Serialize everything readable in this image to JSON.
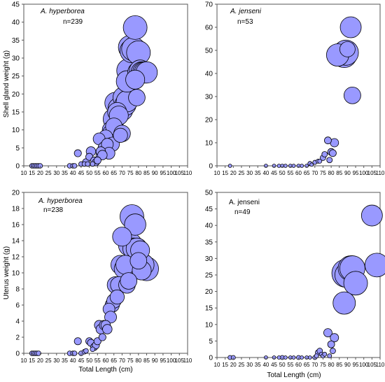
{
  "style": {
    "bubble_fill": "#9999ff",
    "bubble_stroke": "#000000"
  },
  "chart_data": [
    {
      "type": "scatter",
      "title": "A. hyperborea",
      "subtitle": "n=239",
      "title_italic": true,
      "xlabel": "",
      "ylabel": "Shell gland weight (g)",
      "xlim": [
        10,
        110
      ],
      "ylim": [
        0,
        45
      ],
      "x_ticks": [
        "10",
        "15",
        "20",
        "25",
        "30",
        "35",
        "40",
        "45",
        "50",
        "55",
        "60",
        "65",
        "70",
        "75",
        "80",
        "85",
        "90",
        "95",
        "100",
        "105",
        "110"
      ],
      "y_ticks": [
        "0",
        "5",
        "10",
        "15",
        "20",
        "25",
        "30",
        "35",
        "40",
        "45"
      ],
      "grid": false,
      "legend": "none",
      "series": [
        {
          "x": [
            15,
            16,
            17,
            18,
            19,
            20,
            38,
            40,
            41,
            43,
            45,
            47,
            48,
            49,
            50,
            51,
            52,
            53,
            54,
            55,
            56,
            57,
            57,
            58,
            59,
            60,
            60,
            61,
            62,
            63,
            63,
            64,
            65,
            65,
            66,
            67,
            68,
            68,
            69,
            70,
            70,
            71,
            72,
            73,
            73,
            74,
            75,
            76,
            77,
            78,
            78,
            79,
            80,
            80,
            81,
            82,
            83,
            84,
            85
          ],
          "y": [
            0,
            0,
            0,
            0,
            0,
            0,
            0,
            0,
            0,
            3.5,
            0.5,
            0.5,
            1,
            0.5,
            2.5,
            4,
            0.5,
            1.5,
            1,
            1.5,
            7.5,
            3,
            4,
            3,
            5,
            7,
            8,
            6,
            3.5,
            10,
            9,
            6,
            11,
            13,
            17.5,
            15,
            14,
            16,
            8.5,
            9,
            15.5,
            19,
            17,
            18,
            23.5,
            26.5,
            33,
            32,
            32.5,
            38.5,
            24,
            19,
            26,
            31.5,
            26.5,
            26,
            26,
            26,
            26
          ],
          "sizes": [
            0.2,
            0.2,
            0.2,
            0.2,
            0.2,
            0.2,
            0.2,
            0.2,
            0.2,
            0.3,
            0.2,
            0.2,
            0.3,
            0.2,
            0.3,
            0.4,
            0.2,
            0.3,
            0.3,
            0.3,
            0.5,
            0.4,
            0.4,
            0.4,
            0.5,
            0.6,
            0.6,
            0.5,
            0.5,
            0.7,
            0.7,
            0.6,
            0.7,
            0.9,
            0.9,
            0.8,
            0.8,
            0.9,
            0.6,
            0.7,
            0.9,
            0.9,
            0.9,
            0.9,
            0.9,
            1,
            1,
            1,
            1,
            1,
            0.8,
            0.7,
            0.9,
            1,
            0.9,
            0.9,
            0.9,
            0.9,
            0.9
          ]
        }
      ]
    },
    {
      "type": "scatter",
      "title": "A. jenseni",
      "subtitle": "n=53",
      "title_italic": true,
      "xlabel": "",
      "ylabel": "",
      "xlim": [
        10,
        110
      ],
      "ylim": [
        0,
        70
      ],
      "x_ticks": [
        "10",
        "15",
        "20",
        "25",
        "30",
        "35",
        "40",
        "45",
        "50",
        "55",
        "60",
        "65",
        "70",
        "75",
        "80",
        "85",
        "90",
        "95",
        "100",
        "105",
        "110"
      ],
      "y_ticks": [
        "0",
        "10",
        "20",
        "30",
        "40",
        "50",
        "60",
        "70"
      ],
      "grid": false,
      "legend": "none",
      "series": [
        {
          "x": [
            18,
            40,
            45,
            48,
            50,
            52,
            55,
            57,
            60,
            62,
            65,
            67,
            68,
            70,
            72,
            73,
            75,
            76,
            78,
            79,
            80,
            81,
            82,
            84,
            88,
            89,
            90,
            92,
            93
          ],
          "y": [
            0,
            0,
            0,
            0,
            0,
            0,
            0,
            0,
            0,
            0,
            0,
            1,
            0.5,
            1.5,
            2,
            2,
            3.5,
            5,
            11,
            2.5,
            6,
            5.5,
            10,
            48,
            48,
            49,
            50.5,
            60,
            30.5
          ],
          "sizes": [
            0.1,
            0.1,
            0.1,
            0.1,
            0.1,
            0.1,
            0.1,
            0.1,
            0.1,
            0.1,
            0.1,
            0.15,
            0.1,
            0.15,
            0.15,
            0.15,
            0.2,
            0.2,
            0.25,
            0.2,
            0.25,
            0.25,
            0.3,
            0.8,
            0.9,
            0.9,
            0.55,
            0.75,
            0.6
          ]
        }
      ]
    },
    {
      "type": "scatter",
      "title": "A. hyperborea",
      "subtitle": "n=238",
      "title_italic": true,
      "xlabel": "Total Length (cm)",
      "ylabel": "Uterus weight (g)",
      "xlim": [
        10,
        110
      ],
      "ylim": [
        0,
        20
      ],
      "x_ticks": [
        "10",
        "15",
        "20",
        "25",
        "30",
        "35",
        "40",
        "45",
        "50",
        "55",
        "60",
        "65",
        "70",
        "75",
        "80",
        "85",
        "90",
        "95",
        "100",
        "105",
        "110"
      ],
      "y_ticks": [
        "0",
        "2",
        "4",
        "6",
        "8",
        "10",
        "12",
        "14",
        "16",
        "18",
        "20"
      ],
      "grid": false,
      "legend": "none",
      "series": [
        {
          "x": [
            15,
            16,
            17,
            18,
            19,
            38,
            40,
            41,
            43,
            45,
            47,
            48,
            50,
            51,
            52,
            53,
            54,
            55,
            56,
            57,
            58,
            59,
            60,
            61,
            62,
            63,
            64,
            65,
            66,
            67,
            68,
            69,
            70,
            71,
            72,
            73,
            74,
            75,
            76,
            77,
            78,
            79,
            80,
            81,
            82,
            83,
            85
          ],
          "y": [
            0,
            0,
            0,
            0,
            0,
            0,
            0,
            0,
            1.5,
            0,
            0.2,
            0.3,
            1.5,
            1.3,
            0.5,
            0.8,
            1,
            1.5,
            3.5,
            3,
            2,
            3.5,
            3.5,
            3,
            5.5,
            4.5,
            6,
            6.5,
            8.5,
            7,
            8.5,
            11,
            14.5,
            10.5,
            11,
            8.5,
            9,
            13.5,
            17,
            13,
            16,
            13,
            11.5,
            12.8,
            10.3,
            11,
            10.5
          ],
          "sizes": [
            0.2,
            0.2,
            0.2,
            0.2,
            0.2,
            0.2,
            0.2,
            0.2,
            0.3,
            0.2,
            0.2,
            0.2,
            0.3,
            0.3,
            0.2,
            0.3,
            0.3,
            0.3,
            0.4,
            0.4,
            0.3,
            0.4,
            0.4,
            0.4,
            0.5,
            0.5,
            0.6,
            0.6,
            0.7,
            0.6,
            0.7,
            0.8,
            0.8,
            0.8,
            0.8,
            0.7,
            0.7,
            1,
            1,
            0.9,
            0.9,
            0.9,
            0.7,
            0.8,
            0.8,
            0.9,
            1
          ]
        }
      ]
    },
    {
      "type": "scatter",
      "title": "A. jenseni",
      "subtitle": "n=49",
      "title_italic": false,
      "xlabel": "Total Length (cm)",
      "ylabel": "",
      "xlim": [
        10,
        110
      ],
      "ylim": [
        0,
        50
      ],
      "x_ticks": [
        "10",
        "15",
        "20",
        "25",
        "30",
        "35",
        "40",
        "45",
        "50",
        "55",
        "60",
        "65",
        "70",
        "75",
        "80",
        "85",
        "90",
        "95",
        "100",
        "105",
        "110"
      ],
      "y_ticks": [
        "0",
        "5",
        "10",
        "15",
        "20",
        "25",
        "30",
        "35",
        "40",
        "45",
        "50"
      ],
      "grid": false,
      "legend": "none",
      "series": [
        {
          "x": [
            18,
            20,
            40,
            45,
            48,
            50,
            52,
            55,
            57,
            60,
            62,
            65,
            67,
            70,
            71,
            72,
            73,
            74,
            75,
            76,
            78,
            79,
            80,
            81,
            82,
            88,
            89,
            90,
            92,
            93,
            95,
            105,
            108
          ],
          "y": [
            0,
            0,
            0,
            0,
            0,
            0,
            0,
            0,
            0,
            0,
            0,
            0,
            0,
            0,
            0.5,
            1.5,
            2,
            1,
            0.5,
            1,
            7.5,
            0.5,
            4,
            2,
            6,
            16.5,
            25.5,
            25,
            27,
            27,
            22.5,
            43,
            28
          ],
          "sizes": [
            0.15,
            0.15,
            0.1,
            0.1,
            0.1,
            0.15,
            0.1,
            0.1,
            0.1,
            0.15,
            0.1,
            0.1,
            0.1,
            0.15,
            0.15,
            0.2,
            0.2,
            0.15,
            0.15,
            0.15,
            0.3,
            0.15,
            0.25,
            0.2,
            0.3,
            0.8,
            1,
            0.9,
            0.9,
            0.9,
            0.85,
            0.75,
            0.85
          ]
        }
      ]
    }
  ]
}
